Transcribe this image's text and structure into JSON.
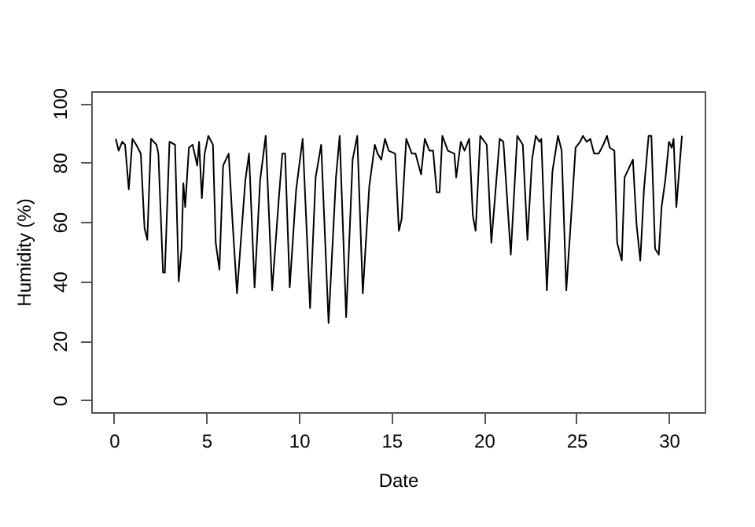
{
  "chart_data": {
    "type": "line",
    "xlabel": "Date",
    "ylabel": "Humidity (%)",
    "xlim": [
      -1.23,
      31.93
    ],
    "ylim": [
      -4,
      104
    ],
    "xticks": [
      0,
      5,
      10,
      15,
      20,
      25,
      30
    ],
    "yticks": [
      0,
      20,
      40,
      60,
      80,
      100
    ],
    "grid": false,
    "line_style": "solid",
    "marker": "none",
    "series": [
      {
        "color": "#000000",
        "x": [
          0.1,
          0.25,
          0.45,
          0.6,
          0.8,
          1.0,
          1.2,
          1.45,
          1.65,
          1.8,
          2.0,
          2.3,
          2.4,
          2.65,
          2.75,
          3.0,
          3.3,
          3.5,
          3.65,
          3.75,
          3.85,
          4.05,
          4.25,
          4.5,
          4.6,
          4.75,
          4.9,
          5.1,
          5.35,
          5.5,
          5.7,
          5.9,
          6.2,
          6.4,
          6.65,
          7.1,
          7.3,
          7.6,
          7.9,
          8.2,
          8.55,
          8.9,
          9.1,
          9.25,
          9.5,
          9.85,
          10.2,
          10.6,
          10.9,
          11.2,
          11.6,
          12.0,
          12.2,
          12.55,
          12.9,
          13.15,
          13.45,
          13.8,
          14.1,
          14.25,
          14.45,
          14.65,
          14.85,
          15.2,
          15.4,
          15.55,
          15.8,
          16.1,
          16.3,
          16.6,
          16.8,
          17.05,
          17.25,
          17.45,
          17.6,
          17.75,
          18.05,
          18.4,
          18.5,
          18.75,
          18.95,
          19.2,
          19.4,
          19.55,
          19.8,
          20.15,
          20.4,
          20.85,
          21.05,
          21.45,
          21.8,
          22.1,
          22.35,
          22.6,
          22.8,
          23.0,
          23.1,
          23.4,
          23.7,
          24.0,
          24.2,
          24.45,
          24.8,
          24.95,
          25.2,
          25.35,
          25.55,
          25.75,
          25.95,
          26.2,
          26.45,
          26.65,
          26.8,
          27.05,
          27.2,
          27.45,
          27.6,
          28.05,
          28.25,
          28.45,
          28.65,
          28.9,
          29.05,
          29.25,
          29.45,
          29.6,
          29.8,
          30.0,
          30.15,
          30.25,
          30.4,
          30.7
        ],
        "values": [
          88,
          84,
          87,
          86,
          71,
          88,
          86,
          83,
          58,
          54,
          88,
          86,
          83,
          43,
          43,
          87,
          86,
          40,
          51,
          73,
          65,
          85,
          86,
          79,
          87,
          68,
          83,
          89,
          86,
          53,
          44,
          79,
          83,
          61,
          36,
          74,
          83,
          38,
          74,
          89,
          37,
          67,
          83,
          83,
          38,
          71,
          88,
          31,
          75,
          86,
          26,
          75,
          89,
          28,
          81,
          89,
          36,
          72,
          86,
          83,
          81,
          88,
          84,
          83,
          57,
          61,
          88,
          83,
          83,
          76,
          88,
          84,
          84,
          70,
          70,
          89,
          84,
          83,
          75,
          87,
          84,
          88,
          62,
          57,
          89,
          86,
          53,
          88,
          87,
          49,
          89,
          86,
          54,
          81,
          89,
          87,
          88,
          37,
          77,
          89,
          84,
          37,
          70,
          85,
          87,
          89,
          87,
          88,
          83,
          83,
          86,
          89,
          85,
          84,
          53,
          47,
          75,
          81,
          59,
          47,
          71,
          89,
          89,
          51,
          49,
          65,
          74,
          87,
          85,
          88,
          65,
          89
        ]
      }
    ]
  }
}
